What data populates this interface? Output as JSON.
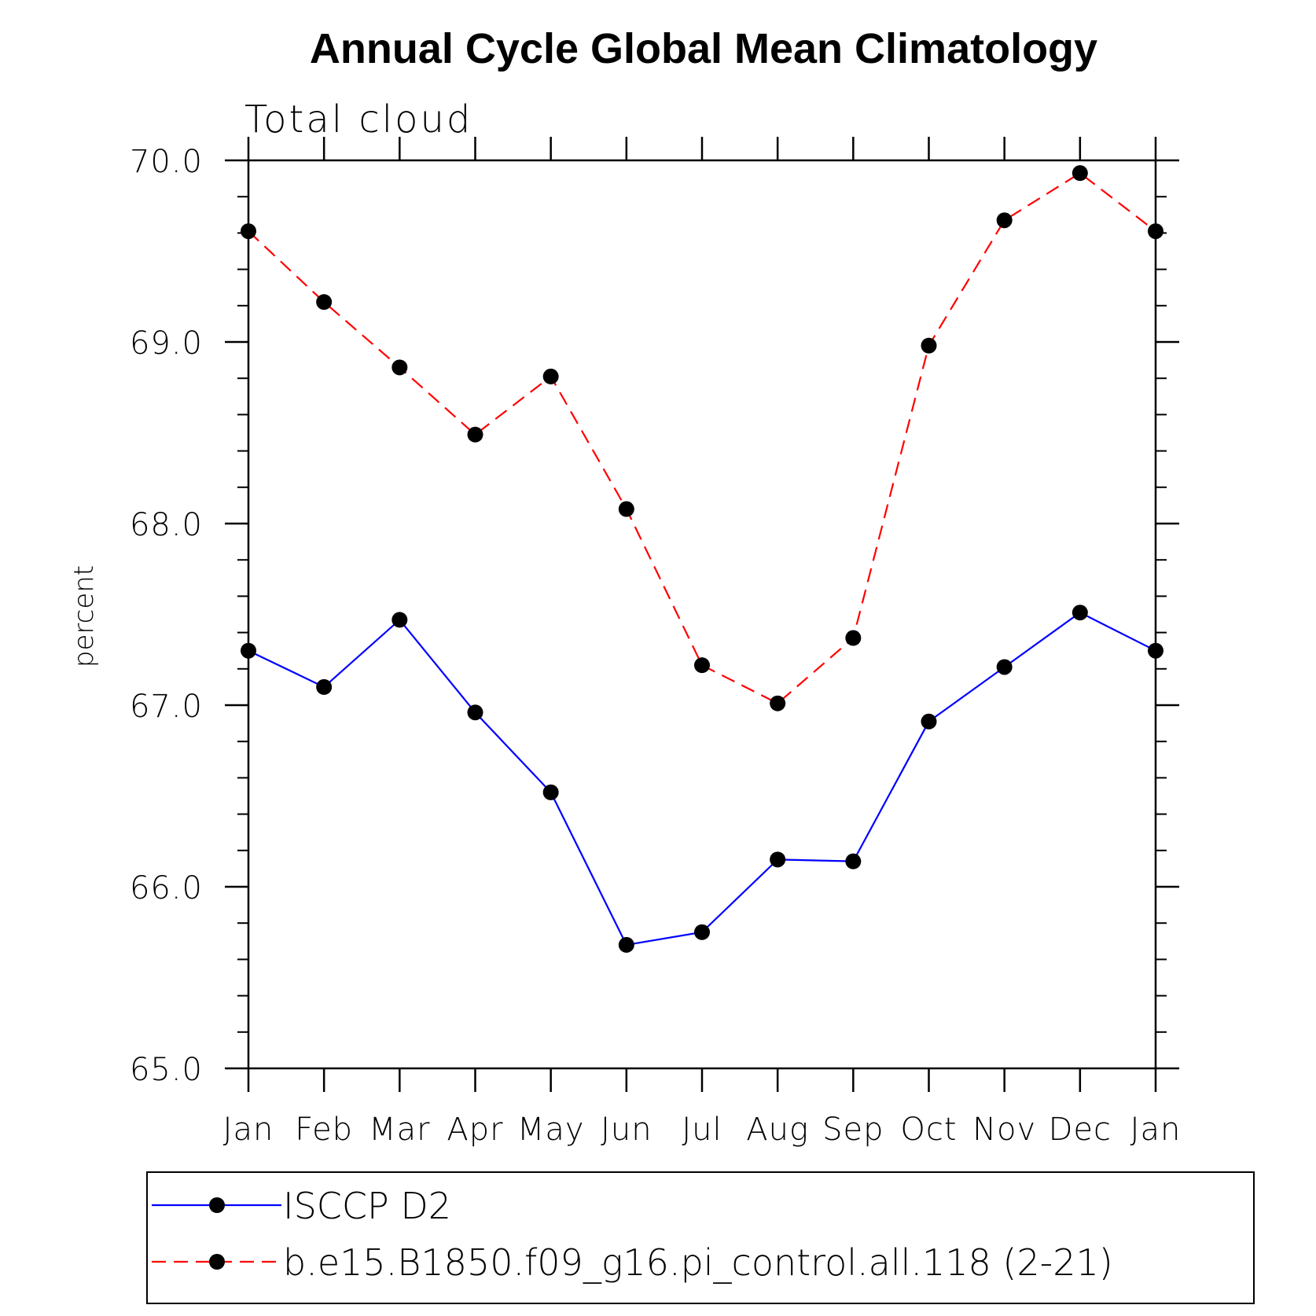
{
  "chart_data": {
    "type": "line",
    "title": "Annual Cycle Global Mean Climatology",
    "subtitle": "Total cloud",
    "xlabel": "",
    "ylabel": "percent",
    "categories": [
      "Jan",
      "Feb",
      "Mar",
      "Apr",
      "May",
      "Jun",
      "Jul",
      "Aug",
      "Sep",
      "Oct",
      "Nov",
      "Dec",
      "Jan"
    ],
    "ylim": [
      65.0,
      70.0
    ],
    "yticks_major": [
      "65.0",
      "66.0",
      "67.0",
      "68.0",
      "69.0",
      "70.0"
    ],
    "y_minor_step": 0.2,
    "grid": false,
    "legend_position": "bottom",
    "series": [
      {
        "name": "ISCCP D2",
        "color": "#0000ff",
        "line_style": "solid",
        "marker": "circle",
        "values": [
          67.3,
          67.1,
          67.47,
          66.96,
          66.52,
          65.68,
          65.75,
          66.15,
          66.14,
          66.91,
          67.21,
          67.51,
          67.3
        ]
      },
      {
        "name": "b.e15.B1850.f09_g16.pi_control.all.118 (2-21)",
        "color": "#ff0000",
        "line_style": "dashed",
        "marker": "circle",
        "values": [
          69.61,
          69.22,
          68.86,
          68.49,
          68.81,
          68.08,
          67.22,
          67.01,
          67.37,
          68.98,
          69.67,
          69.93,
          69.61
        ]
      }
    ]
  }
}
